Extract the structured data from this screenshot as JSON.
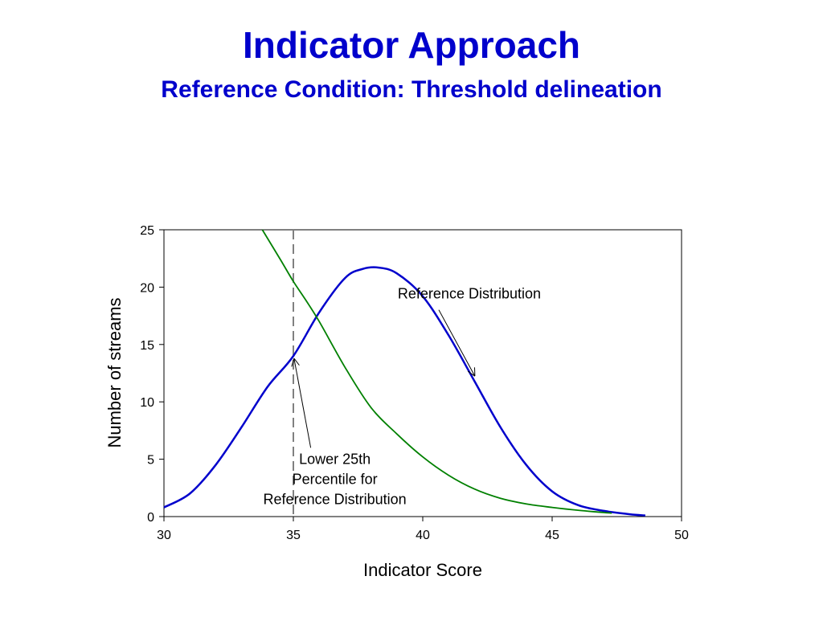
{
  "slide": {
    "title": "Indicator Approach",
    "subtitle": "Reference Condition: Threshold delineation"
  },
  "colors": {
    "title": "#0000cc",
    "reference_curve": "#0000cc",
    "other_curve": "#008000",
    "threshold_line": "#808080"
  },
  "chart_data": {
    "type": "line",
    "xlabel": "Indicator Score",
    "ylabel": "Number of streams",
    "xlim": [
      30,
      50
    ],
    "ylim": [
      0,
      25
    ],
    "x_ticks": [
      30,
      35,
      40,
      45,
      50
    ],
    "y_ticks": [
      0,
      5,
      10,
      15,
      20,
      25
    ],
    "grid": false,
    "series": [
      {
        "name": "Reference Distribution",
        "color": "#0000cc",
        "x": [
          30,
          31,
          32,
          33,
          34,
          35,
          36,
          37,
          37.7,
          38.3,
          39,
          40,
          41,
          42,
          43,
          44,
          45,
          46,
          47,
          48,
          48.6
        ],
        "y": [
          0.8,
          2.0,
          4.5,
          7.8,
          11.3,
          14.0,
          17.8,
          20.8,
          21.6,
          21.7,
          21.2,
          19.2,
          15.8,
          11.8,
          7.8,
          4.5,
          2.2,
          1.0,
          0.5,
          0.2,
          0.1
        ]
      },
      {
        "color": "#008000",
        "x": [
          33.8,
          34.5,
          35,
          35.5,
          36,
          37,
          38,
          39,
          40,
          41,
          42,
          43,
          44,
          45,
          46,
          47,
          47.3
        ],
        "y": [
          25,
          22.4,
          20.5,
          18.8,
          17.0,
          13.0,
          9.5,
          7.2,
          5.2,
          3.6,
          2.4,
          1.6,
          1.1,
          0.8,
          0.55,
          0.35,
          0.3
        ]
      }
    ],
    "threshold": {
      "x": 35
    },
    "annotations": [
      {
        "text": "Reference Distribution",
        "x": 41.8,
        "y": 19.0,
        "target_x": 42,
        "target_y": 12.3
      },
      {
        "text_lines": [
          "Lower 25th",
          "Percentile for",
          "Reference Distribution"
        ],
        "x": 38.0,
        "y": 4.6,
        "target_x": 35.0,
        "target_y": 13.8
      }
    ]
  }
}
